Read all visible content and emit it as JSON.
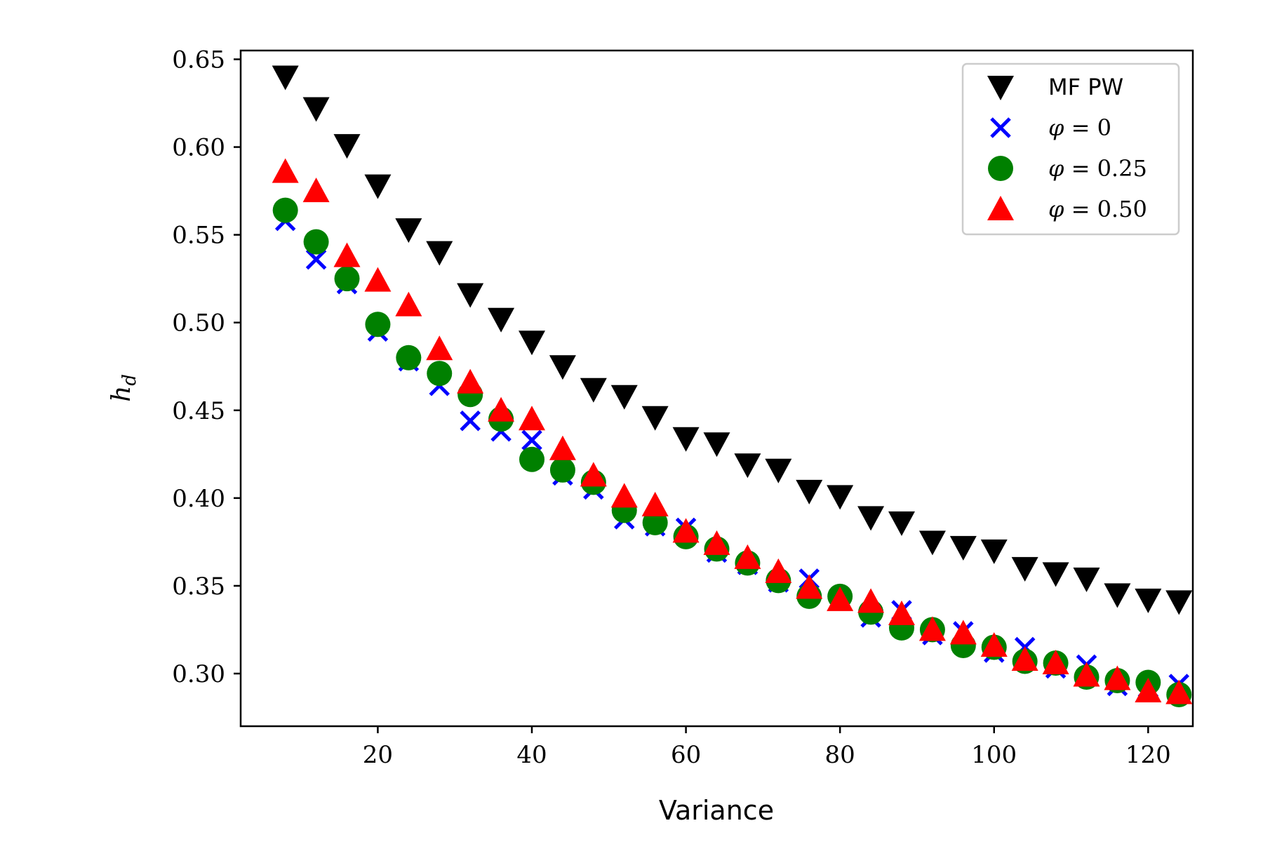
{
  "chart_data": {
    "type": "scatter",
    "title": "",
    "xlabel": "Variance",
    "ylabel": "h_d",
    "ylabel_main": "h",
    "ylabel_sub": "d",
    "xlim": [
      2.2,
      125.8
    ],
    "ylim": [
      0.27,
      0.655
    ],
    "xticks": [
      20,
      40,
      60,
      80,
      100,
      120
    ],
    "xtick_labels": [
      "20",
      "40",
      "60",
      "80",
      "100",
      "120"
    ],
    "yticks": [
      0.3,
      0.35,
      0.4,
      0.45,
      0.5,
      0.55,
      0.6,
      0.65
    ],
    "ytick_labels": [
      "0.30",
      "0.35",
      "0.40",
      "0.45",
      "0.50",
      "0.55",
      "0.60",
      "0.65"
    ],
    "grid": false,
    "legend_position": "top-right",
    "x": [
      8,
      12,
      16,
      20,
      24,
      28,
      32,
      36,
      40,
      44,
      48,
      52,
      56,
      60,
      64,
      68,
      72,
      76,
      80,
      84,
      88,
      92,
      96,
      100,
      104,
      108,
      112,
      116,
      120,
      124
    ],
    "series": [
      {
        "name": "MF PW",
        "marker": "triangle-down",
        "color": "#000000",
        "values": [
          0.64,
          0.622,
          0.601,
          0.578,
          0.553,
          0.54,
          0.516,
          0.502,
          0.489,
          0.475,
          0.462,
          0.458,
          0.446,
          0.434,
          0.431,
          0.419,
          0.416,
          0.404,
          0.401,
          0.389,
          0.386,
          0.375,
          0.372,
          0.37,
          0.36,
          0.357,
          0.354,
          0.345,
          0.342,
          0.341
        ]
      },
      {
        "name": "φ = 0",
        "marker": "x",
        "color": "#0000ff",
        "values": [
          0.558,
          0.536,
          0.522,
          0.495,
          0.478,
          0.464,
          0.444,
          0.438,
          0.433,
          0.413,
          0.405,
          0.388,
          0.384,
          0.383,
          0.369,
          0.362,
          0.352,
          0.354,
          0.342,
          0.332,
          0.336,
          0.322,
          0.324,
          0.312,
          0.315,
          0.303,
          0.305,
          0.293,
          0.292,
          0.294
        ]
      },
      {
        "name": "φ = 0.25",
        "marker": "circle",
        "color": "#008000",
        "values": [
          0.564,
          0.546,
          0.525,
          0.499,
          0.48,
          0.471,
          0.459,
          0.445,
          0.422,
          0.416,
          0.409,
          0.393,
          0.386,
          0.378,
          0.371,
          0.363,
          0.353,
          0.344,
          0.344,
          0.335,
          0.326,
          0.325,
          0.316,
          0.315,
          0.307,
          0.306,
          0.298,
          0.296,
          0.295,
          0.288
        ]
      },
      {
        "name": "φ = 0.50",
        "marker": "triangle-up",
        "color": "#ff0000",
        "values": [
          0.586,
          0.575,
          0.538,
          0.524,
          0.51,
          0.485,
          0.466,
          0.45,
          0.445,
          0.428,
          0.413,
          0.401,
          0.396,
          0.381,
          0.374,
          0.366,
          0.358,
          0.349,
          0.342,
          0.341,
          0.334,
          0.325,
          0.323,
          0.316,
          0.308,
          0.306,
          0.299,
          0.297,
          0.29,
          0.289
        ]
      }
    ],
    "legend": [
      {
        "label": "MF PW",
        "marker": "triangle-down",
        "color": "#000000"
      },
      {
        "var": "φ",
        "rel": " = ",
        "value": "0",
        "marker": "x",
        "color": "#0000ff"
      },
      {
        "var": "φ",
        "rel": " = ",
        "value": "0.25",
        "marker": "circle",
        "color": "#008000"
      },
      {
        "var": "φ",
        "rel": " = ",
        "value": "0.50",
        "marker": "triangle-up",
        "color": "#ff0000"
      }
    ]
  }
}
